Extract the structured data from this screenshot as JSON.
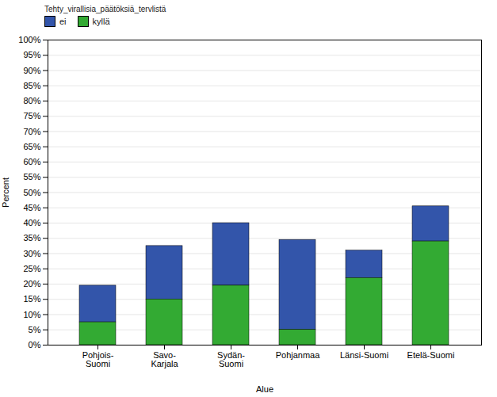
{
  "chart_data": {
    "type": "bar",
    "stacked": true,
    "categories": [
      "Pohjois-\nSuomi",
      "Savo-\nKarjala",
      "Sydän-\nSuomi",
      "Pohjanmaa",
      "Länsi-Suomi",
      "Etelä-Suomi"
    ],
    "series": [
      {
        "name": "ei",
        "color": "#3355aa",
        "values": [
          12.0,
          17.5,
          20.5,
          29.5,
          9.0,
          11.5
        ]
      },
      {
        "name": "kyllä",
        "color": "#33aa33",
        "values": [
          7.5,
          15.0,
          19.5,
          5.0,
          22.0,
          34.0
        ]
      }
    ],
    "legend_title": "Tehty_virallisia_päätöksiä_tervlistä",
    "legend": "right",
    "xlabel": "Alue",
    "ylabel": "Percent",
    "ylim": [
      0,
      100
    ],
    "yticks": [
      {
        "value": 0,
        "label": "0%"
      },
      {
        "value": 5,
        "label": "5%"
      },
      {
        "value": 10,
        "label": "10%"
      },
      {
        "value": 15,
        "label": "15%"
      },
      {
        "value": 20,
        "label": "20%"
      },
      {
        "value": 25,
        "label": "25%"
      },
      {
        "value": 30,
        "label": "30%"
      },
      {
        "value": 35,
        "label": "35%"
      },
      {
        "value": 40,
        "label": "40%"
      },
      {
        "value": 45,
        "label": "45%"
      },
      {
        "value": 50,
        "label": "50%"
      },
      {
        "value": 55,
        "label": "55%"
      },
      {
        "value": 60,
        "label": "60%"
      },
      {
        "value": 65,
        "label": "65%"
      },
      {
        "value": 70,
        "label": "70%"
      },
      {
        "value": 75,
        "label": "75%"
      },
      {
        "value": 80,
        "label": "80%"
      },
      {
        "value": 85,
        "label": "85%"
      },
      {
        "value": 90,
        "label": "90%"
      },
      {
        "value": 95,
        "label": "95%"
      },
      {
        "value": 100,
        "label": "100%"
      }
    ],
    "grid": true
  }
}
